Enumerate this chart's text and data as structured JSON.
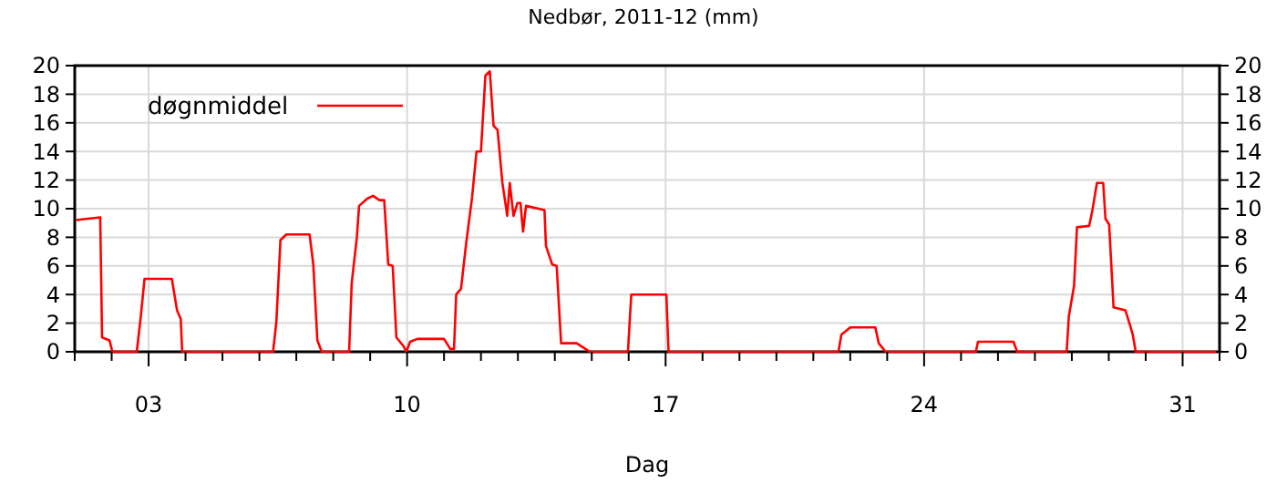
{
  "chart_data": {
    "type": "line",
    "title": "Nedbør, 2011-12 (mm)",
    "xlabel": "Dag",
    "legend": "top left",
    "grid": true,
    "marker": "none",
    "line_style": "solid",
    "xlim": [
      1,
      32
    ],
    "xticks": [
      {
        "value": 1,
        "label": null
      },
      {
        "value": 2,
        "label": null
      },
      {
        "value": 3,
        "label": "03"
      },
      {
        "value": 4,
        "label": null
      },
      {
        "value": 5,
        "label": null
      },
      {
        "value": 6,
        "label": null
      },
      {
        "value": 7,
        "label": null
      },
      {
        "value": 8,
        "label": null
      },
      {
        "value": 9,
        "label": null
      },
      {
        "value": 10,
        "label": "10"
      },
      {
        "value": 11,
        "label": null
      },
      {
        "value": 12,
        "label": null
      },
      {
        "value": 13,
        "label": null
      },
      {
        "value": 14,
        "label": null
      },
      {
        "value": 15,
        "label": null
      },
      {
        "value": 16,
        "label": null
      },
      {
        "value": 17,
        "label": "17"
      },
      {
        "value": 18,
        "label": null
      },
      {
        "value": 19,
        "label": null
      },
      {
        "value": 20,
        "label": null
      },
      {
        "value": 21,
        "label": null
      },
      {
        "value": 22,
        "label": null
      },
      {
        "value": 23,
        "label": null
      },
      {
        "value": 24,
        "label": "24"
      },
      {
        "value": 25,
        "label": null
      },
      {
        "value": 26,
        "label": null
      },
      {
        "value": 27,
        "label": null
      },
      {
        "value": 28,
        "label": null
      },
      {
        "value": 29,
        "label": null
      },
      {
        "value": 30,
        "label": null
      },
      {
        "value": 31,
        "label": "31"
      },
      {
        "value": 32,
        "label": null
      }
    ],
    "ylim": [
      0,
      20
    ],
    "yticks": [
      0,
      2,
      4,
      6,
      8,
      10,
      12,
      14,
      16,
      18,
      20
    ],
    "y2lim": [
      0,
      20
    ],
    "y2ticks": [
      0,
      2,
      4,
      6,
      8,
      10,
      12,
      14,
      16,
      18,
      20
    ],
    "series": [
      {
        "name": "døgnmiddel",
        "color": "#ff0000",
        "x": [
          1.03,
          1.69,
          1.74,
          1.94,
          2.02,
          2.68,
          2.79,
          2.89,
          3.63,
          3.77,
          3.87,
          3.91,
          6.37,
          6.46,
          6.57,
          6.73,
          7.36,
          7.46,
          7.57,
          7.69,
          8.43,
          8.5,
          8.64,
          8.7,
          8.92,
          9.08,
          9.25,
          9.38,
          9.49,
          9.61,
          9.71,
          9.9,
          9.98,
          10.08,
          10.28,
          11.0,
          11.17,
          11.27,
          11.33,
          11.46,
          11.6,
          11.76,
          11.88,
          12.0,
          12.12,
          12.24,
          12.34,
          12.45,
          12.58,
          12.65,
          12.71,
          12.78,
          12.88,
          12.99,
          13.07,
          13.14,
          13.22,
          13.72,
          13.76,
          13.93,
          14.05,
          14.17,
          14.59,
          14.83,
          14.95,
          15.98,
          16.07,
          17.02,
          17.08,
          21.68,
          21.76,
          22.0,
          22.68,
          22.77,
          22.96,
          25.4,
          25.46,
          26.42,
          26.52,
          27.86,
          27.92,
          28.06,
          28.14,
          28.47,
          28.55,
          28.68,
          28.85,
          28.91,
          29.01,
          29.13,
          29.45,
          29.57,
          29.65,
          29.73,
          31.9
        ],
        "values": [
          9.2,
          9.4,
          1.0,
          0.8,
          0,
          0,
          2.5,
          5.1,
          5.1,
          2.9,
          2.3,
          0,
          0,
          2.1,
          7.8,
          8.2,
          8.2,
          6.1,
          0.8,
          0,
          0,
          4.8,
          8.0,
          10.2,
          10.7,
          10.9,
          10.6,
          10.6,
          6.1,
          6.0,
          1.0,
          0.4,
          0,
          0.7,
          0.9,
          0.9,
          0.2,
          0.2,
          4.0,
          4.4,
          7.6,
          10.8,
          14.0,
          14.0,
          19.3,
          19.6,
          15.8,
          15.5,
          11.8,
          10.6,
          9.5,
          11.8,
          9.5,
          10.4,
          10.4,
          8.4,
          10.2,
          9.9,
          7.4,
          6.1,
          6.0,
          0.6,
          0.6,
          0.2,
          0,
          0,
          4.0,
          4.0,
          0,
          0,
          1.2,
          1.7,
          1.7,
          0.6,
          0,
          0,
          0.7,
          0.7,
          0,
          0,
          2.5,
          4.6,
          8.7,
          8.8,
          9.8,
          11.8,
          11.8,
          9.3,
          8.9,
          3.1,
          2.9,
          1.9,
          1.2,
          0,
          0
        ]
      }
    ]
  }
}
